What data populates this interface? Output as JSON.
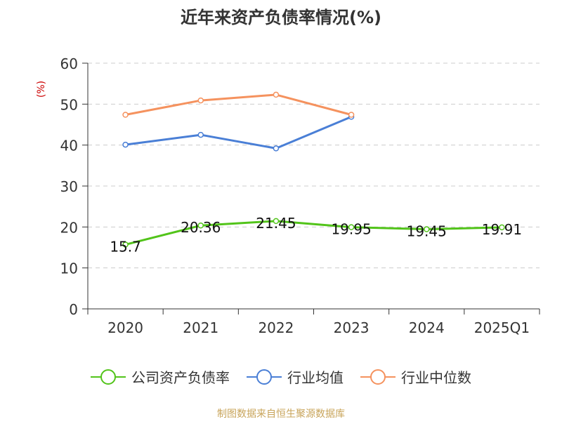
{
  "chart_data": {
    "type": "line",
    "title": "近年来资产负债率情况(%)",
    "ylabel": "(%)",
    "xlabel": "",
    "categories": [
      "2020",
      "2021",
      "2022",
      "2023",
      "2024",
      "2025Q1"
    ],
    "ylim": [
      0,
      60
    ],
    "yticks": [
      0,
      10,
      20,
      30,
      40,
      50,
      60
    ],
    "grid": true,
    "legend_position": "bottom",
    "series": [
      {
        "name": "公司资产负债率",
        "color": "#52c41a",
        "values": [
          15.7,
          20.36,
          21.45,
          19.95,
          19.45,
          19.91
        ],
        "data_labels": [
          "15.7",
          "20.36",
          "21.45",
          "19.95",
          "19.45",
          "19.91"
        ]
      },
      {
        "name": "行业均值",
        "color": "#4a7fd6",
        "values": [
          40.1,
          42.5,
          39.2,
          46.9,
          null,
          null
        ]
      },
      {
        "name": "行业中位数",
        "color": "#f5925e",
        "values": [
          47.4,
          50.9,
          52.3,
          47.4,
          null,
          null
        ]
      }
    ]
  },
  "footer": {
    "source": "制图数据来自恒生聚源数据库"
  }
}
